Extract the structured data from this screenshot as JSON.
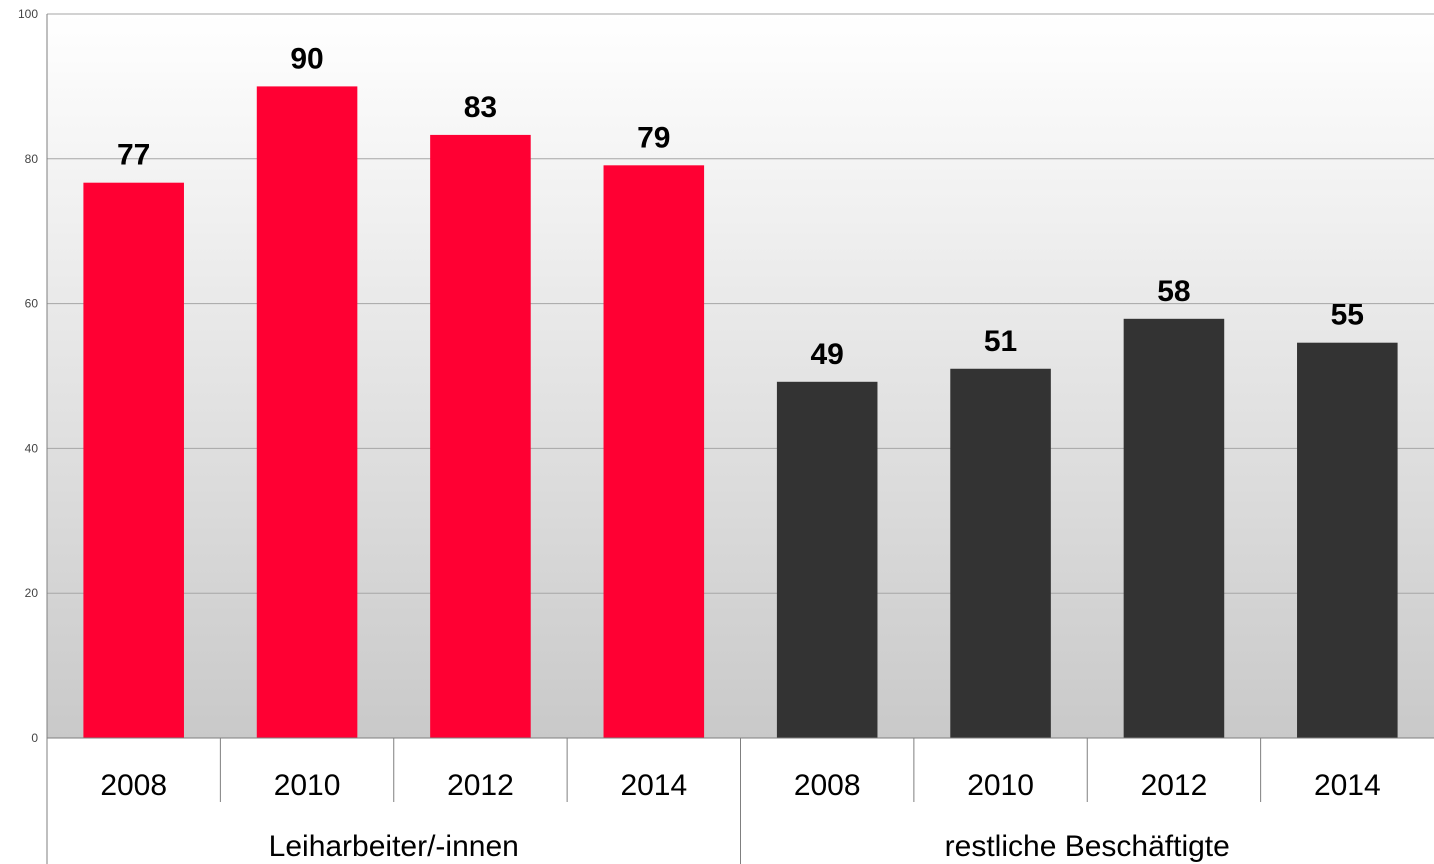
{
  "chart_data": {
    "type": "bar",
    "ylim": [
      0,
      100
    ],
    "yticks": [
      0,
      20,
      40,
      60,
      80,
      100
    ],
    "grid": true,
    "groups": [
      {
        "name": "Leiharbeiter/-innen",
        "color": "#ff0033",
        "categories": [
          "2008",
          "2010",
          "2012",
          "2014"
        ],
        "values": [
          76.7,
          90.0,
          83.3,
          79.1
        ],
        "labels": [
          "77",
          "90",
          "83",
          "79"
        ]
      },
      {
        "name": "restliche Beschäftigte",
        "color": "#333333",
        "categories": [
          "2008",
          "2010",
          "2012",
          "2014"
        ],
        "values": [
          49.2,
          51.0,
          57.9,
          54.6
        ],
        "labels": [
          "49",
          "51",
          "58",
          "55"
        ]
      }
    ]
  }
}
